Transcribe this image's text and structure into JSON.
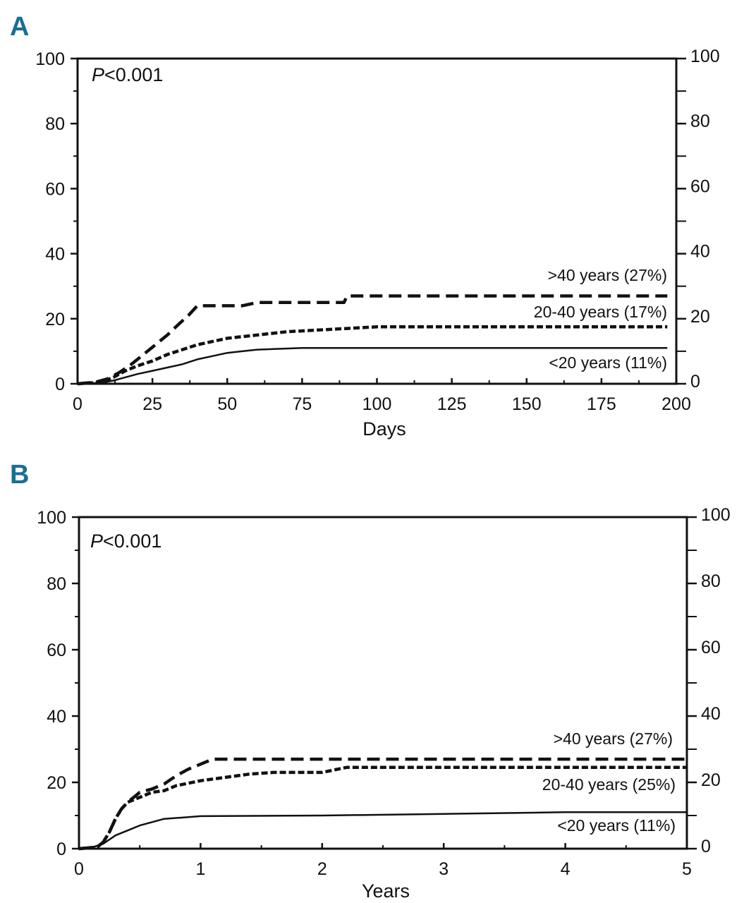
{
  "figure": {
    "panel_color": "#1a6e93",
    "line_color": "#111111"
  },
  "chart_data": [
    {
      "panel": "A",
      "type": "line",
      "annotation": "P<0.001",
      "annotation_italic": "P",
      "annotation_rest": "<0.001",
      "xlabel": "Days",
      "ylabel": "",
      "xlim": [
        0,
        200
      ],
      "ylim": [
        0,
        100
      ],
      "x_ticks": [
        "0",
        "25",
        "50",
        "75",
        "100",
        "125",
        "150",
        "175",
        "200"
      ],
      "y_ticks": [
        "0",
        "20",
        "40",
        "60",
        "80",
        "100"
      ],
      "series": [
        {
          "name": ">40 years (27%)",
          "style": "dashed-long",
          "points": [
            [
              0,
              0
            ],
            [
              6,
              0.5
            ],
            [
              10,
              1.5
            ],
            [
              14,
              3.5
            ],
            [
              18,
              6
            ],
            [
              22,
              9
            ],
            [
              26,
              12
            ],
            [
              30,
              15
            ],
            [
              34,
              18.5
            ],
            [
              37,
              21
            ],
            [
              40,
              24
            ],
            [
              45,
              24
            ],
            [
              55,
              24
            ],
            [
              60,
              25
            ],
            [
              75,
              25
            ],
            [
              89,
              25
            ],
            [
              90,
              27
            ],
            [
              197,
              27
            ]
          ]
        },
        {
          "name": "20-40 years (17%)",
          "style": "dashed-short",
          "points": [
            [
              0,
              0
            ],
            [
              8,
              0.5
            ],
            [
              12,
              2
            ],
            [
              16,
              4
            ],
            [
              20,
              5.5
            ],
            [
              25,
              7
            ],
            [
              30,
              9
            ],
            [
              35,
              10.5
            ],
            [
              40,
              12
            ],
            [
              45,
              13
            ],
            [
              50,
              14
            ],
            [
              55,
              14.5
            ],
            [
              60,
              15
            ],
            [
              70,
              16
            ],
            [
              80,
              16.5
            ],
            [
              90,
              17
            ],
            [
              100,
              17.5
            ],
            [
              197,
              17.5
            ]
          ]
        },
        {
          "name": "<20 years (11%)",
          "style": "solid",
          "points": [
            [
              0,
              0
            ],
            [
              8,
              0.3
            ],
            [
              12,
              1
            ],
            [
              16,
              2
            ],
            [
              20,
              3
            ],
            [
              25,
              4
            ],
            [
              30,
              5
            ],
            [
              35,
              6
            ],
            [
              40,
              7.5
            ],
            [
              45,
              8.5
            ],
            [
              50,
              9.5
            ],
            [
              55,
              10
            ],
            [
              60,
              10.5
            ],
            [
              75,
              11
            ],
            [
              100,
              11
            ],
            [
              197,
              11
            ]
          ]
        }
      ],
      "series_labels": [
        ">40 years (27%)",
        "20-40 years (17%)",
        "<20 years (11%)"
      ]
    },
    {
      "panel": "B",
      "type": "line",
      "annotation": "P<0.001",
      "annotation_italic": "P",
      "annotation_rest": "<0.001",
      "xlabel": "Years",
      "ylabel": "",
      "xlim": [
        0,
        5
      ],
      "ylim": [
        0,
        100
      ],
      "x_ticks": [
        "0",
        "1",
        "2",
        "3",
        "4",
        "5"
      ],
      "y_ticks": [
        "0",
        "20",
        "40",
        "60",
        "80",
        "100"
      ],
      "series": [
        {
          "name": ">40 years (27%)",
          "style": "dashed-long",
          "points": [
            [
              0,
              0
            ],
            [
              0.15,
              0.5
            ],
            [
              0.2,
              2
            ],
            [
              0.25,
              5
            ],
            [
              0.3,
              9
            ],
            [
              0.35,
              12
            ],
            [
              0.4,
              14
            ],
            [
              0.45,
              15.5
            ],
            [
              0.5,
              17
            ],
            [
              0.6,
              18
            ],
            [
              0.7,
              19.5
            ],
            [
              0.8,
              22
            ],
            [
              0.9,
              24
            ],
            [
              1.0,
              25.5
            ],
            [
              1.1,
              27
            ],
            [
              5,
              27
            ]
          ]
        },
        {
          "name": "20-40 years (25%)",
          "style": "dashed-short",
          "points": [
            [
              0,
              0
            ],
            [
              0.15,
              0.5
            ],
            [
              0.2,
              2
            ],
            [
              0.25,
              5
            ],
            [
              0.3,
              9
            ],
            [
              0.35,
              12
            ],
            [
              0.4,
              14
            ],
            [
              0.5,
              15.5
            ],
            [
              0.6,
              17
            ],
            [
              0.7,
              17.5
            ],
            [
              0.8,
              19
            ],
            [
              1.0,
              20.5
            ],
            [
              1.2,
              21.5
            ],
            [
              1.4,
              22.5
            ],
            [
              1.6,
              23
            ],
            [
              2.0,
              23
            ],
            [
              2.2,
              24.5
            ],
            [
              5,
              24.5
            ]
          ]
        },
        {
          "name": "<20 years (11%)",
          "style": "solid",
          "points": [
            [
              0,
              0
            ],
            [
              0.1,
              0.3
            ],
            [
              0.2,
              1.5
            ],
            [
              0.3,
              4
            ],
            [
              0.4,
              5.5
            ],
            [
              0.5,
              7
            ],
            [
              0.6,
              8
            ],
            [
              0.7,
              9
            ],
            [
              0.9,
              9.5
            ],
            [
              1.0,
              9.8
            ],
            [
              2.0,
              10
            ],
            [
              3.0,
              10.5
            ],
            [
              4.0,
              11
            ],
            [
              5,
              11
            ]
          ]
        }
      ],
      "series_labels": [
        ">40 years (27%)",
        "20-40 years (25%)",
        "<20 years (11%)"
      ]
    }
  ]
}
